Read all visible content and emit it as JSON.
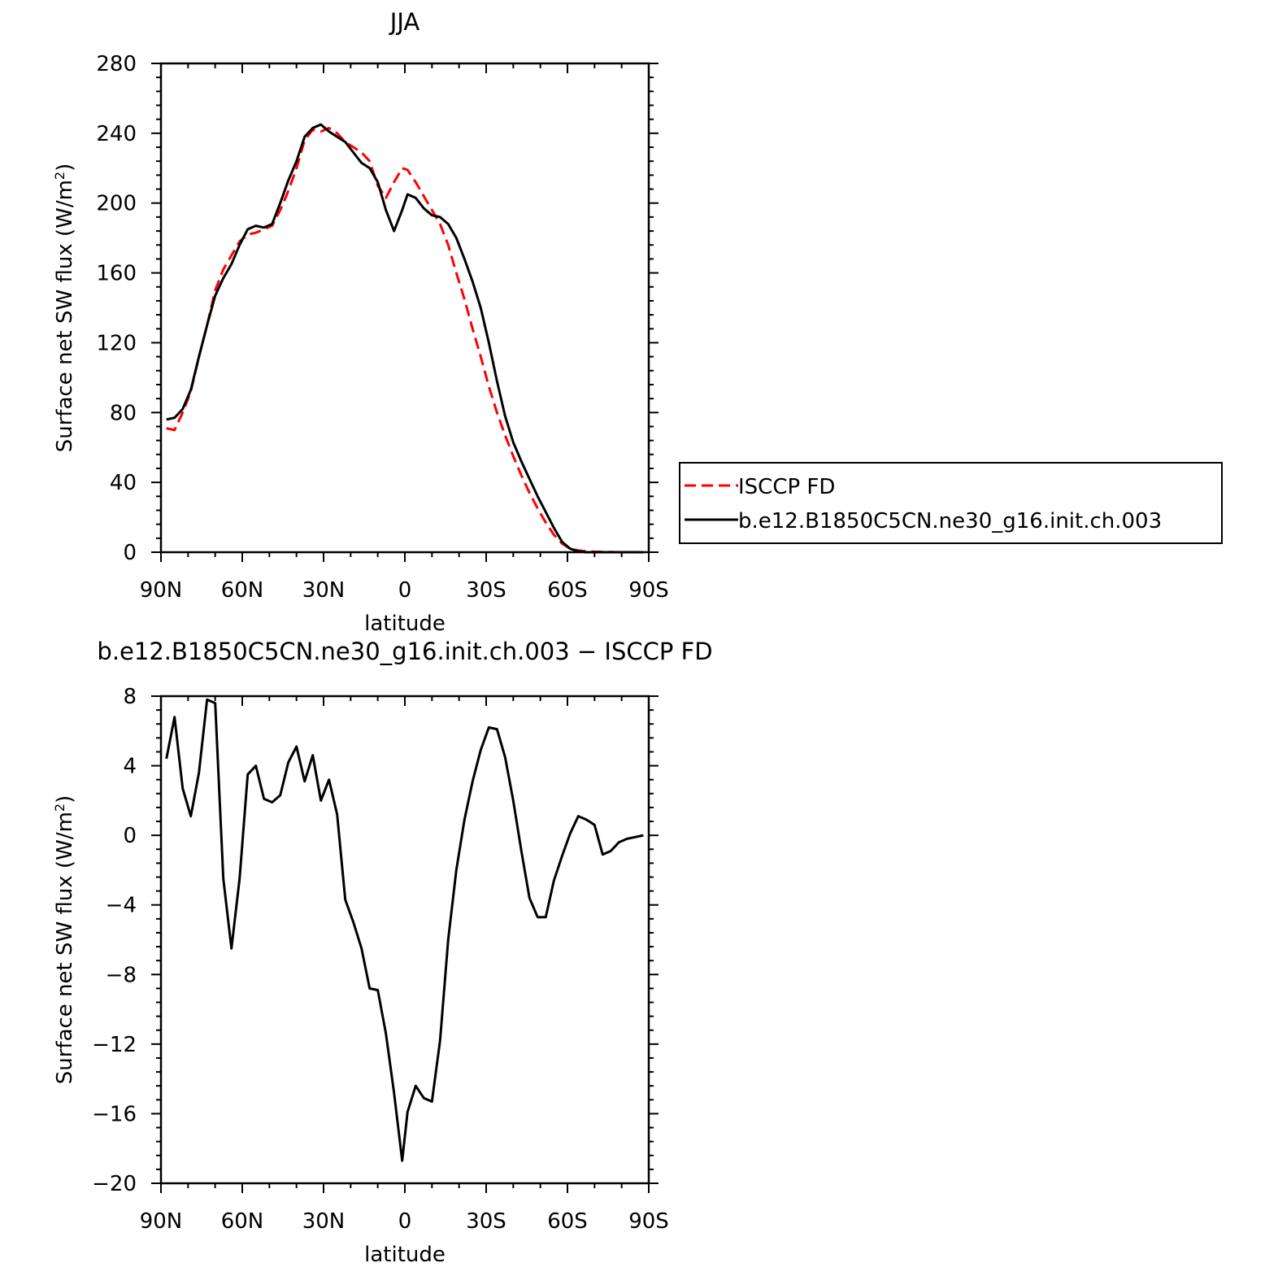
{
  "chart_data": [
    {
      "type": "line",
      "title": "JJA",
      "xlabel": "latitude",
      "ylabel": "Surface net SW flux (W/m",
      "ylabel_sup": "2",
      "ylabel_tail": ")",
      "xlim": [
        90,
        -90
      ],
      "ylim": [
        0,
        280
      ],
      "xtick_values": [
        90,
        60,
        30,
        0,
        -30,
        -60,
        -90
      ],
      "xtick_labels": [
        "90N",
        "60N",
        "30N",
        "0",
        "30S",
        "60S",
        "90S"
      ],
      "ytick_values": [
        0,
        40,
        80,
        120,
        160,
        200,
        240,
        280
      ],
      "ytick_labels": [
        "0",
        "40",
        "80",
        "120",
        "160",
        "200",
        "240",
        "280"
      ],
      "grid": false,
      "legend": "right",
      "series": [
        {
          "name": "ISCCP FD",
          "color": "#ff0000",
          "dash": "dashed",
          "x": [
            88,
            85,
            82,
            79,
            76,
            73,
            70,
            67,
            64,
            61,
            58,
            55,
            52,
            49,
            46,
            43,
            40,
            37,
            34,
            31,
            28,
            25,
            22,
            19,
            16,
            13,
            10,
            7,
            4,
            1,
            -1,
            -4,
            -7,
            -10,
            -13,
            -16,
            -19,
            -22,
            -25,
            -28,
            -31,
            -34,
            -37,
            -40,
            -43,
            -46,
            -49,
            -52,
            -55,
            -58,
            -61,
            -64,
            -67,
            -70,
            -73,
            -76,
            -79,
            -82,
            -85,
            -88
          ],
          "y": [
            71,
            70,
            80,
            92,
            112,
            130,
            150,
            162,
            170,
            178,
            182,
            183,
            185,
            187,
            196,
            207,
            220,
            236,
            242,
            241,
            243,
            240,
            235,
            232,
            229,
            224,
            210,
            203,
            212,
            220,
            219,
            212,
            204,
            196,
            188,
            176,
            160,
            145,
            128,
            112,
            95,
            80,
            67,
            55,
            44,
            34,
            25,
            17,
            10,
            5,
            2,
            1,
            0.5,
            0.3,
            0.2,
            0.1,
            0,
            0,
            0,
            0
          ]
        },
        {
          "name": "b.e12.B1850C5CN.ne30_g16.init.ch.003",
          "color": "#000000",
          "dash": "solid",
          "x": [
            88,
            85,
            82,
            79,
            76,
            73,
            70,
            67,
            64,
            61,
            58,
            55,
            52,
            49,
            46,
            43,
            40,
            37,
            34,
            31,
            28,
            25,
            22,
            19,
            16,
            13,
            10,
            7,
            4,
            1,
            -1,
            -4,
            -7,
            -10,
            -13,
            -16,
            -19,
            -22,
            -25,
            -28,
            -31,
            -34,
            -37,
            -40,
            -43,
            -46,
            -49,
            -52,
            -55,
            -58,
            -61,
            -64,
            -67,
            -70,
            -73,
            -76,
            -79,
            -82,
            -85,
            -88
          ],
          "y": [
            76,
            77,
            82,
            93,
            112,
            130,
            147,
            157,
            165,
            176,
            185,
            187,
            186,
            188,
            200,
            213,
            224,
            238,
            243,
            245,
            241,
            238,
            235,
            229,
            223,
            220,
            212,
            196,
            184,
            196,
            205,
            203,
            197,
            193,
            192,
            188,
            180,
            168,
            155,
            140,
            120,
            98,
            78,
            63,
            52,
            42,
            32,
            23,
            14,
            6,
            2,
            0.5,
            0,
            0,
            0,
            0,
            0,
            0,
            0,
            0
          ]
        }
      ]
    },
    {
      "type": "line",
      "title": "b.e12.B1850C5CN.ne30_g16.init.ch.003 − ISCCP FD",
      "xlabel": "latitude",
      "ylabel": "Surface net SW flux (W/m",
      "ylabel_sup": "2",
      "ylabel_tail": ")",
      "xlim": [
        90,
        -90
      ],
      "ylim": [
        -20,
        8
      ],
      "xtick_values": [
        90,
        60,
        30,
        0,
        -30,
        -60,
        -90
      ],
      "xtick_labels": [
        "90N",
        "60N",
        "30N",
        "0",
        "30S",
        "60S",
        "90S"
      ],
      "ytick_values": [
        -20,
        -16,
        -12,
        -8,
        -4,
        0,
        4,
        8
      ],
      "ytick_labels": [
        "−20",
        "−16",
        "−12",
        "−8",
        "−4",
        "0",
        "4",
        "8"
      ],
      "grid": false,
      "series": [
        {
          "color": "#000000",
          "dash": "solid",
          "x": [
            88,
            85,
            82,
            79,
            76,
            73,
            70,
            67,
            64,
            61,
            58,
            55,
            52,
            49,
            46,
            43,
            40,
            37,
            34,
            31,
            28,
            25,
            22,
            19,
            16,
            13,
            10,
            7,
            4,
            1,
            -1,
            -4,
            -7,
            -10,
            -13,
            -16,
            -19,
            -22,
            -25,
            -28,
            -31,
            -34,
            -37,
            -40,
            -43,
            -46,
            -49,
            -52,
            -55,
            -58,
            -61,
            -64,
            -67,
            -70,
            -73,
            -76,
            -79,
            -82,
            -85,
            -88
          ],
          "y": [
            4.4,
            6.8,
            2.7,
            1.1,
            3.6,
            7.8,
            7.6,
            -2.5,
            -6.5,
            -2.5,
            3.5,
            4.0,
            2.1,
            1.9,
            2.3,
            4.2,
            5.1,
            3.1,
            4.6,
            2.0,
            3.2,
            1.2,
            -3.7,
            -5.0,
            -6.5,
            -8.8,
            -8.9,
            -11.4,
            -14.8,
            -18.7,
            -15.9,
            -14.4,
            -15.1,
            -15.3,
            -11.8,
            -6.0,
            -2.0,
            0.9,
            3.1,
            4.9,
            6.2,
            6.1,
            4.5,
            2.0,
            -0.9,
            -3.6,
            -4.7,
            -4.7,
            -2.6,
            -1.2,
            0.1,
            1.1,
            0.9,
            0.6,
            -1.1,
            -0.9,
            -0.4,
            -0.2,
            -0.1,
            0
          ]
        }
      ]
    }
  ]
}
